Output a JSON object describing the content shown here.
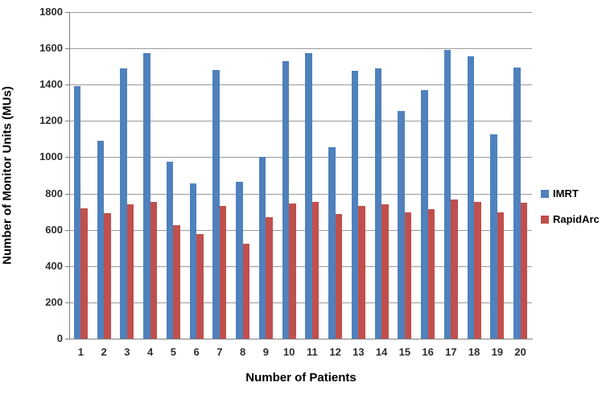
{
  "chart_data": {
    "type": "bar",
    "title": "",
    "xlabel": "Number of Patients",
    "ylabel": "Number of Monitor Units (MUs)",
    "categories": [
      "1",
      "2",
      "3",
      "4",
      "5",
      "6",
      "7",
      "8",
      "9",
      "10",
      "11",
      "12",
      "13",
      "14",
      "15",
      "16",
      "17",
      "18",
      "19",
      "20"
    ],
    "series": [
      {
        "name": "IMRT",
        "color": "#4F81BD",
        "values": [
          1390,
          1090,
          1490,
          1575,
          975,
          855,
          1480,
          865,
          1000,
          1530,
          1575,
          1055,
          1475,
          1490,
          1255,
          1370,
          1590,
          1555,
          1125,
          1495
        ]
      },
      {
        "name": "RapidArc",
        "color": "#C0504D",
        "values": [
          720,
          690,
          740,
          755,
          625,
          575,
          730,
          525,
          670,
          745,
          755,
          685,
          730,
          740,
          695,
          715,
          765,
          755,
          695,
          750
        ]
      }
    ],
    "ylim": [
      0,
      1800
    ],
    "ytick_interval": 200,
    "y_tick_labels": [
      "0",
      "200",
      "400",
      "600",
      "800",
      "1000",
      "1200",
      "1400",
      "1600",
      "1800"
    ],
    "grid": true,
    "legend_position": "right",
    "colors": {
      "gridline": "#9a9a9a",
      "axis": "#808080",
      "tick_text": "#2e2e2e",
      "title_text": "#000000",
      "background": "#ffffff"
    }
  }
}
